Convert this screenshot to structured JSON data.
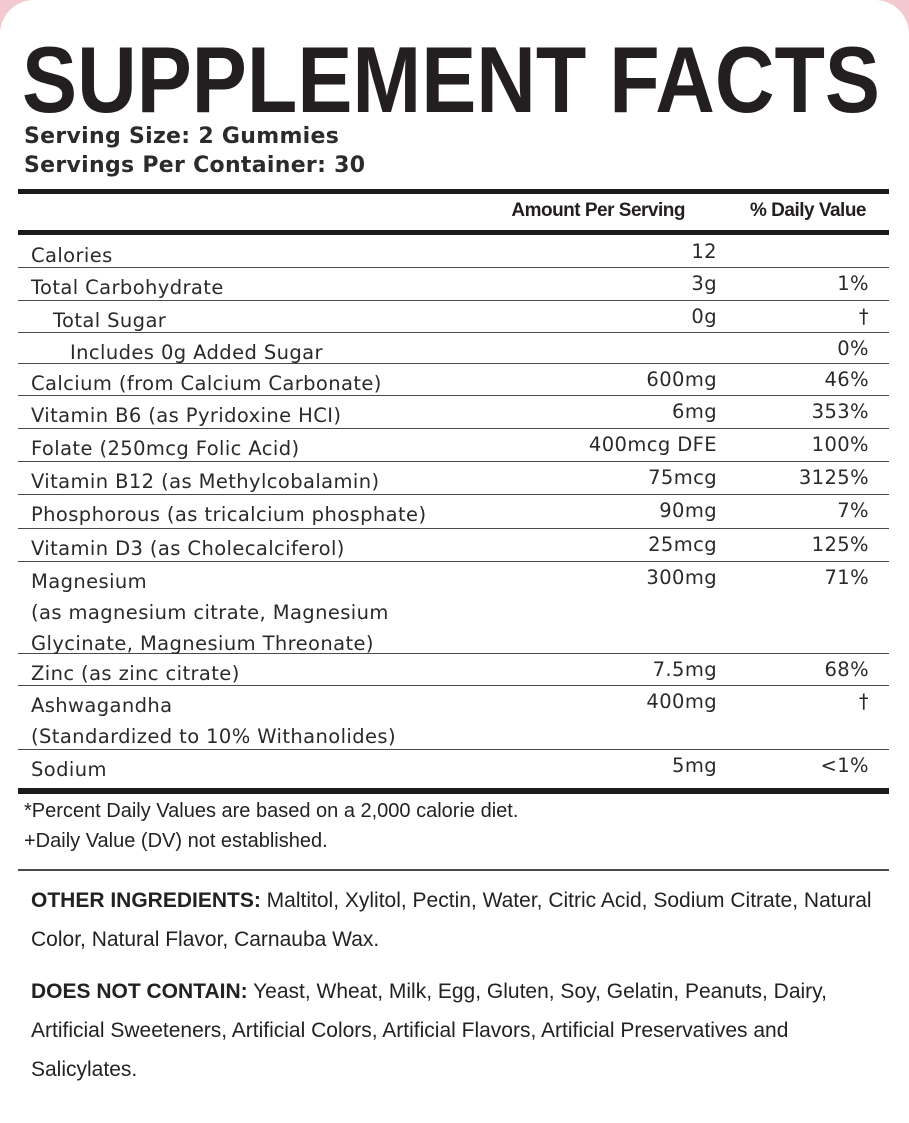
{
  "title": "SUPPLEMENT FACTS",
  "serving_size": "Serving Size: 2 Gummies",
  "servings_per_container": "Servings Per Container: 30",
  "header": {
    "amount": "Amount Per Serving",
    "dv": "% Daily Value"
  },
  "rows": [
    {
      "name": "Calories",
      "amount": "12",
      "dv": ""
    },
    {
      "name": "Total Carbohydrate",
      "amount": "3g",
      "dv": "1%"
    },
    {
      "name": "Total Sugar",
      "amount": "0g",
      "dv": "†"
    },
    {
      "name": "Includes 0g Added Sugar",
      "amount": "",
      "dv": "0%"
    },
    {
      "name": "Calcium (from Calcium Carbonate)",
      "amount": "600mg",
      "dv": "46%"
    },
    {
      "name": "Vitamin B6 (as Pyridoxine HCI)",
      "amount": "6mg",
      "dv": "353%"
    },
    {
      "name": "Folate (250mcg Folic Acid)",
      "amount": "400mcg DFE",
      "dv": "100%"
    },
    {
      "name": "Vitamin B12 (as Methylcobalamin)",
      "amount": "75mcg",
      "dv": "3125%"
    },
    {
      "name": "Phosphorous (as tricalcium phosphate)",
      "amount": "90mg",
      "dv": "7%"
    },
    {
      "name": "Vitamin D3 (as Cholecalciferol)",
      "amount": "25mcg",
      "dv": "125%"
    },
    {
      "name": "Magnesium\n(as magnesium citrate, Magnesium\nGlycinate, Magnesium Threonate)",
      "amount": "300mg",
      "dv": "71%"
    },
    {
      "name": "Zinc (as zinc citrate)",
      "amount": "7.5mg",
      "dv": "68%"
    },
    {
      "name": "Ashwagandha\n(Standardized to 10% Withanolides)",
      "amount": "400mg",
      "dv": "†"
    },
    {
      "name": "Sodium",
      "amount": "5mg",
      "dv": "<1%"
    }
  ],
  "footnotes": [
    "*Percent Daily Values are based on a 2,000 calorie diet.",
    "+Daily Value (DV) not established."
  ],
  "other_ingredients": {
    "label": "OTHER INGREDIENTS:",
    "text": " Maltitol, Xylitol, Pectin, Water, Citric Acid, Sodium Citrate, Natural Color, Natural Flavor, Carnauba Wax."
  },
  "does_not_contain": {
    "label": "DOES NOT CONTAIN:",
    "text": " Yeast, Wheat, Milk, Egg, Gluten, Soy, Gelatin, Peanuts, Dairy, Artificial Sweeteners, Artificial Colors, Artificial Flavors, Artificial Preservatives and Salicylates."
  },
  "colors": {
    "corner": "#f3c9cf",
    "ink": "#231f20"
  }
}
